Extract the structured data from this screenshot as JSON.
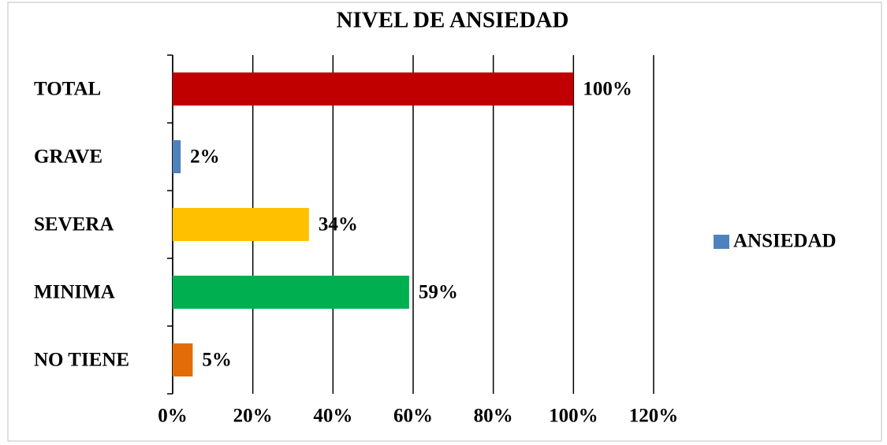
{
  "chart_data": {
    "type": "barh",
    "title": "NIVEL DE ANSIEDAD",
    "categories": [
      "TOTAL",
      "GRAVE",
      "SEVERA",
      "MINIMA",
      "NO TIENE"
    ],
    "series": [
      {
        "name": "ANSIEDAD",
        "color": "#4f81bd",
        "values": [
          100,
          2,
          34,
          59,
          5
        ],
        "value_labels": [
          "100%",
          "2%",
          "34%",
          "59%",
          "5%"
        ],
        "point_colors": [
          "#c00000",
          "#4f81bd",
          "#ffc000",
          "#00b050",
          "#e36c09"
        ]
      }
    ],
    "xlim": [
      0,
      120
    ],
    "xticks": [
      {
        "value": 0,
        "label": "0%"
      },
      {
        "value": 20,
        "label": "20%"
      },
      {
        "value": 40,
        "label": "40%"
      },
      {
        "value": 60,
        "label": "60%"
      },
      {
        "value": 80,
        "label": "80%"
      },
      {
        "value": 100,
        "label": "100%"
      },
      {
        "value": 120,
        "label": "120%"
      }
    ],
    "grid": true,
    "legend": "right"
  }
}
